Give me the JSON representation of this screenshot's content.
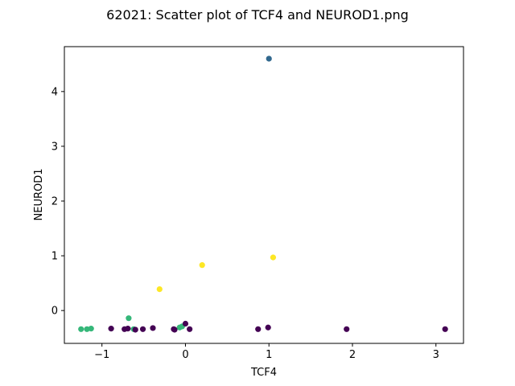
{
  "chart_data": {
    "type": "scatter",
    "title": "62021: Scatter plot of TCF4 and NEUROD1.png",
    "xlabel": "TCF4",
    "ylabel": "NEUROD1",
    "xlim": [
      -1.45,
      3.33
    ],
    "ylim": [
      -0.6,
      4.82
    ],
    "xticks": [
      -1,
      0,
      1,
      2,
      3
    ],
    "xtick_labels": [
      "−1",
      "0",
      "1",
      "2",
      "3"
    ],
    "yticks": [
      0,
      1,
      2,
      3,
      4
    ],
    "ytick_labels": [
      "0",
      "1",
      "2",
      "3",
      "4"
    ],
    "grid": false,
    "colors": {
      "purple": "#440154",
      "blue": "#31688e",
      "green": "#35b779",
      "yellow": "#fde725",
      "axis": "#000000"
    },
    "points": [
      {
        "x": 1.0,
        "y": 4.6,
        "color": "#31688e"
      },
      {
        "x": 1.05,
        "y": 0.97,
        "color": "#fde725"
      },
      {
        "x": 0.2,
        "y": 0.83,
        "color": "#fde725"
      },
      {
        "x": -0.31,
        "y": 0.39,
        "color": "#fde725"
      },
      {
        "x": -0.68,
        "y": -0.14,
        "color": "#35b779"
      },
      {
        "x": -1.25,
        "y": -0.34,
        "color": "#35b779"
      },
      {
        "x": -1.18,
        "y": -0.34,
        "color": "#35b779"
      },
      {
        "x": -1.13,
        "y": -0.33,
        "color": "#35b779"
      },
      {
        "x": -0.62,
        "y": -0.34,
        "color": "#35b779"
      },
      {
        "x": -0.07,
        "y": -0.31,
        "color": "#35b779"
      },
      {
        "x": -0.04,
        "y": -0.29,
        "color": "#35b779"
      },
      {
        "x": -0.89,
        "y": -0.33,
        "color": "#440154"
      },
      {
        "x": -0.73,
        "y": -0.34,
        "color": "#440154"
      },
      {
        "x": -0.69,
        "y": -0.33,
        "color": "#440154"
      },
      {
        "x": -0.6,
        "y": -0.35,
        "color": "#440154"
      },
      {
        "x": -0.51,
        "y": -0.34,
        "color": "#440154"
      },
      {
        "x": -0.39,
        "y": -0.32,
        "color": "#440154"
      },
      {
        "x": -0.14,
        "y": -0.34,
        "color": "#440154"
      },
      {
        "x": -0.13,
        "y": -0.35,
        "color": "#440154"
      },
      {
        "x": 0.0,
        "y": -0.24,
        "color": "#440154"
      },
      {
        "x": 0.05,
        "y": -0.34,
        "color": "#440154"
      },
      {
        "x": 0.87,
        "y": -0.34,
        "color": "#440154"
      },
      {
        "x": 0.99,
        "y": -0.31,
        "color": "#440154"
      },
      {
        "x": 1.93,
        "y": -0.34,
        "color": "#440154"
      },
      {
        "x": 3.11,
        "y": -0.34,
        "color": "#440154"
      }
    ]
  }
}
